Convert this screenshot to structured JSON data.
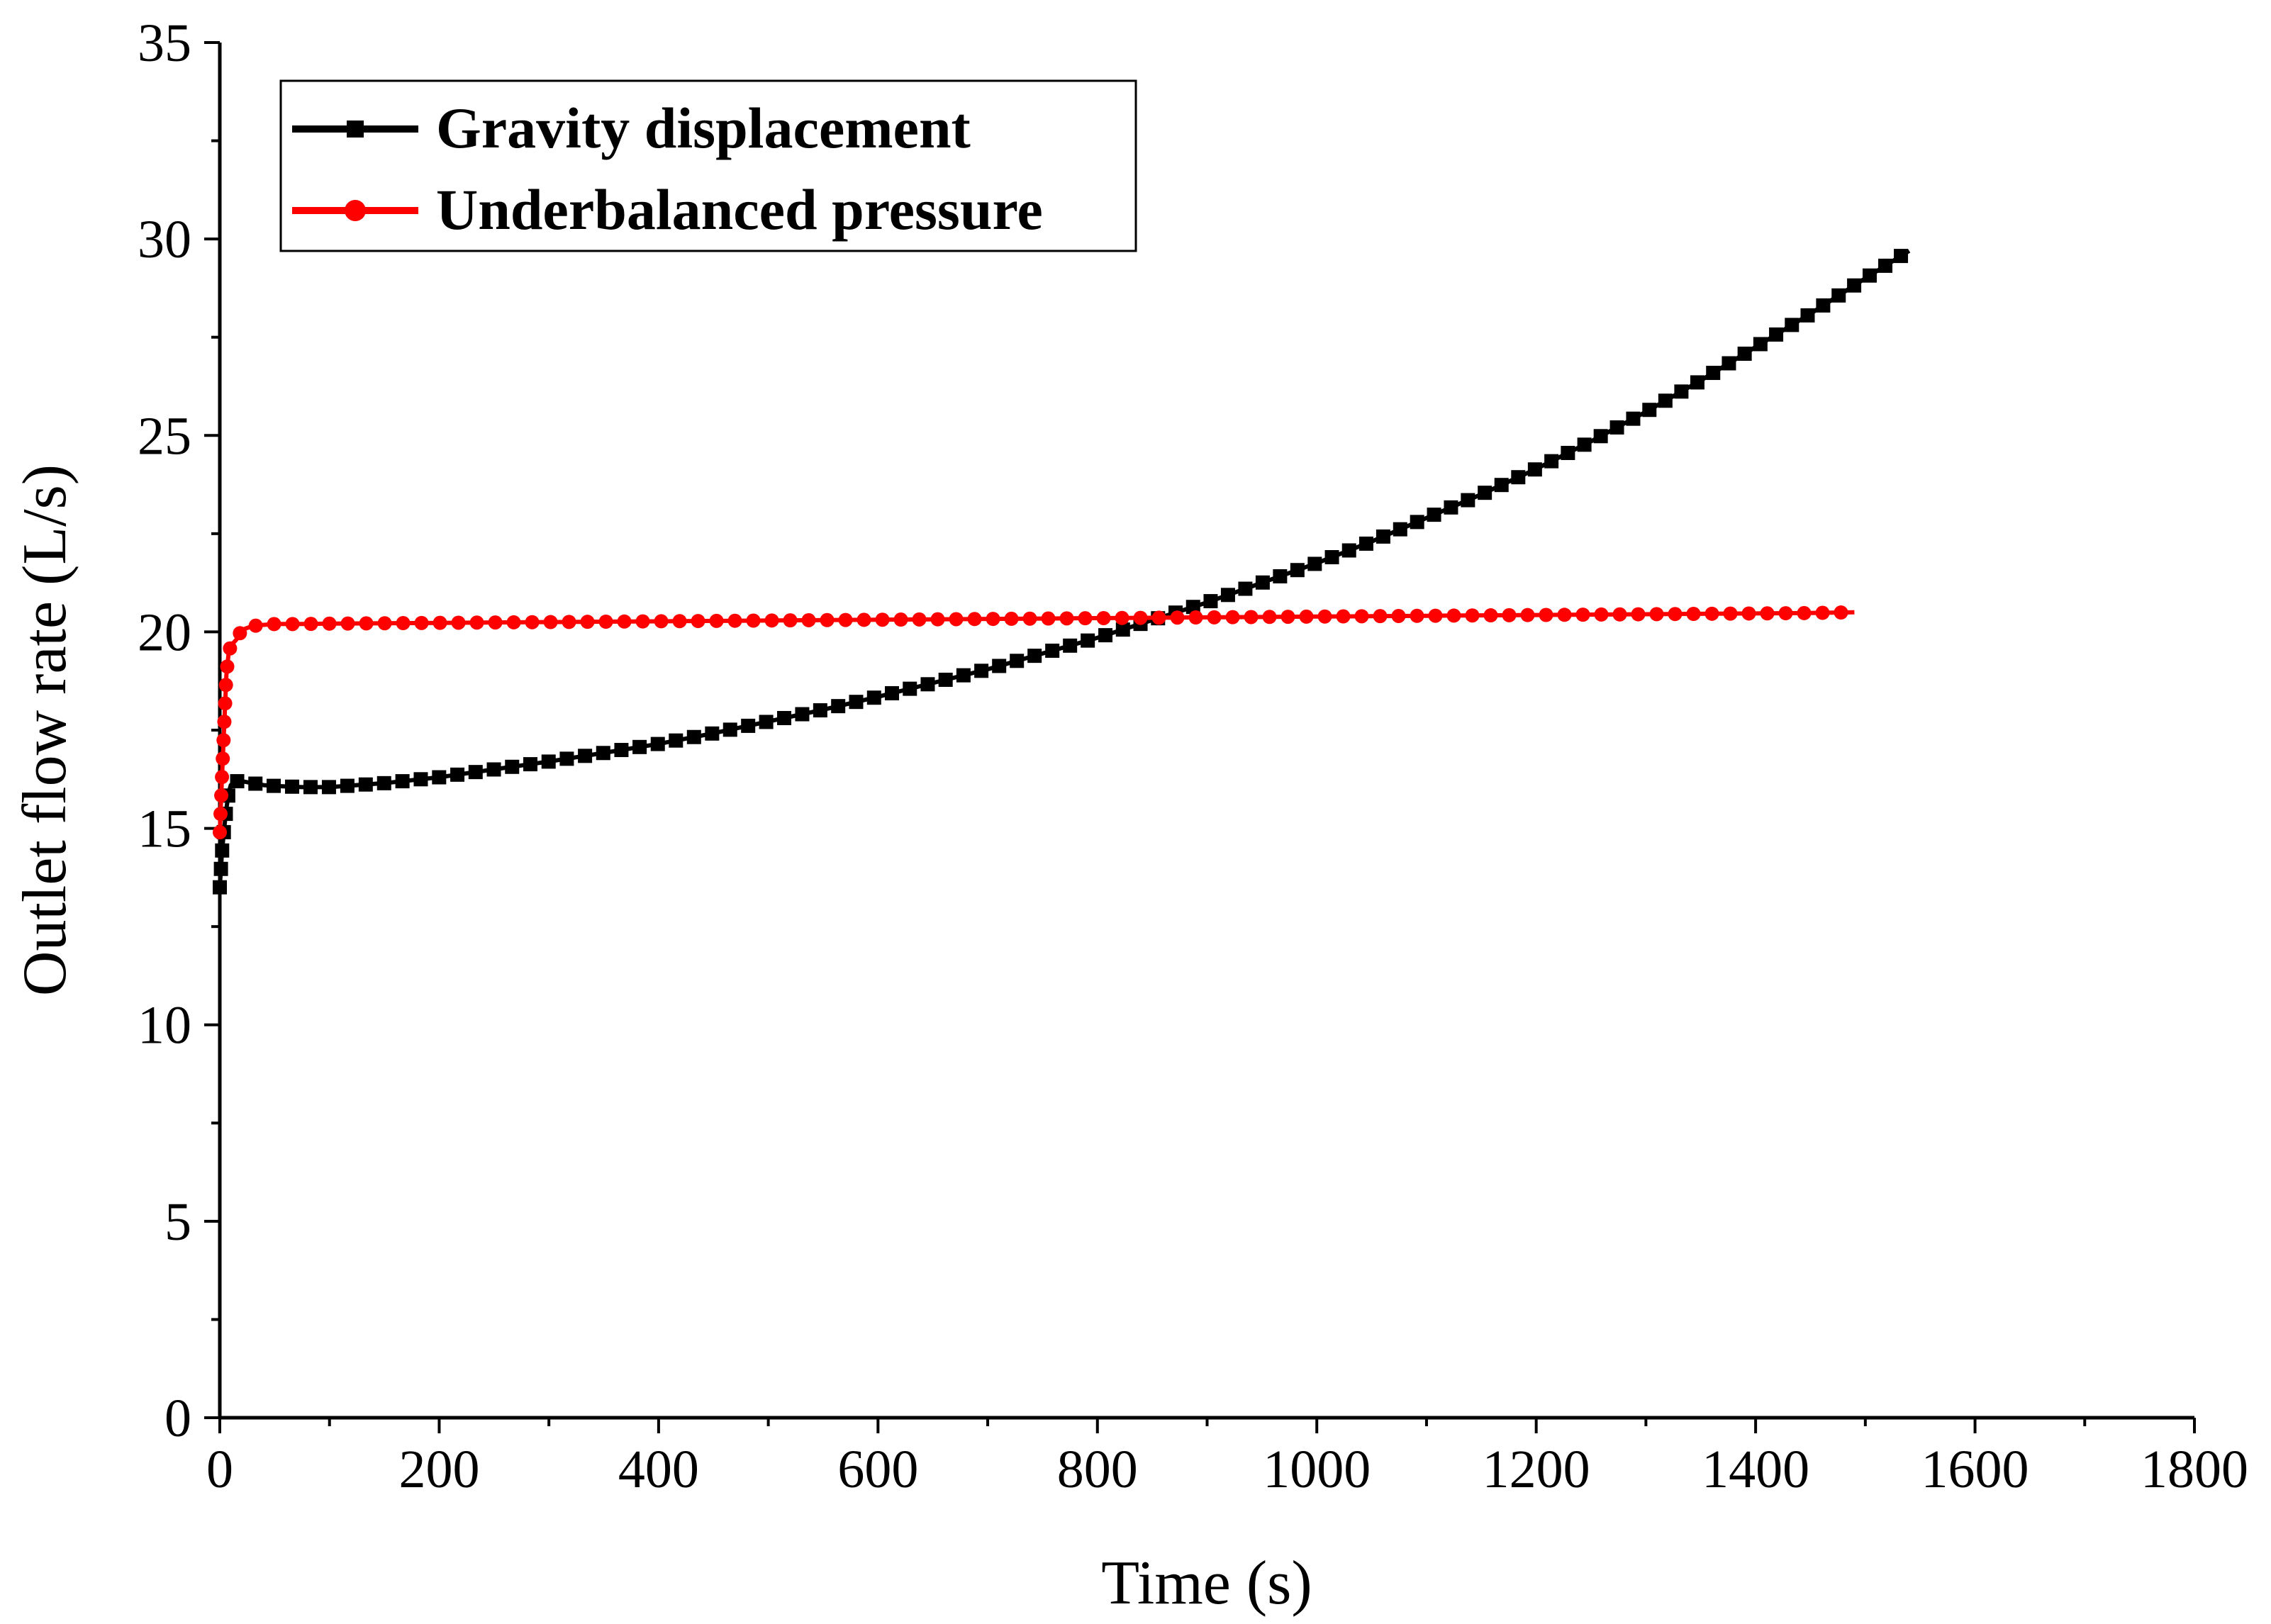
{
  "chart_data": {
    "type": "line",
    "title": "",
    "xlabel": "Time (s)",
    "ylabel": "Outlet flow rate (L/s)",
    "xlim": [
      0,
      1800
    ],
    "ylim": [
      0,
      35
    ],
    "xticks": [
      "0",
      "200",
      "400",
      "600",
      "800",
      "1000",
      "1200",
      "1400",
      "1600",
      "1800"
    ],
    "yticks": [
      "0",
      "5",
      "10",
      "15",
      "20",
      "25",
      "30",
      "35"
    ],
    "grid": false,
    "legend_position": "top-left",
    "series": [
      {
        "name": "Gravity displacement",
        "color": "#000000",
        "marker": "square",
        "x": [
          0,
          2,
          4,
          6,
          8,
          10,
          15,
          20,
          30,
          40,
          50,
          75,
          100,
          150,
          200,
          250,
          300,
          350,
          400,
          450,
          500,
          550,
          600,
          650,
          700,
          750,
          800,
          850,
          900,
          950,
          1000,
          1050,
          1100,
          1150,
          1200,
          1250,
          1300,
          1350,
          1400,
          1450,
          1500,
          1540
        ],
        "y": [
          13.5,
          14.4,
          15.0,
          15.5,
          15.9,
          16.1,
          16.2,
          16.2,
          16.15,
          16.1,
          16.08,
          16.05,
          16.05,
          16.15,
          16.3,
          16.5,
          16.7,
          16.92,
          17.15,
          17.42,
          17.72,
          18.02,
          18.35,
          18.7,
          19.05,
          19.45,
          19.85,
          20.3,
          20.75,
          21.25,
          21.75,
          22.3,
          22.9,
          23.5,
          24.15,
          24.85,
          25.6,
          26.4,
          27.25,
          28.1,
          29.0,
          29.7
        ]
      },
      {
        "name": "Underbalanced pressure",
        "color": "#ff0000",
        "marker": "circle",
        "x": [
          0,
          2,
          4,
          6,
          8,
          10,
          15,
          20,
          30,
          40,
          50,
          75,
          100,
          150,
          200,
          250,
          300,
          350,
          400,
          450,
          500,
          550,
          600,
          650,
          700,
          750,
          800,
          850,
          900,
          950,
          1000,
          1050,
          1100,
          1150,
          1200,
          1250,
          1300,
          1350,
          1400,
          1450,
          1490
        ],
        "y": [
          14.9,
          16.3,
          17.6,
          18.9,
          19.45,
          19.65,
          19.8,
          20.05,
          20.15,
          20.18,
          20.2,
          20.2,
          20.21,
          20.22,
          20.23,
          20.24,
          20.25,
          20.26,
          20.27,
          20.28,
          20.29,
          20.3,
          20.31,
          20.32,
          20.33,
          20.34,
          20.35,
          20.36,
          20.37,
          20.38,
          20.39,
          20.4,
          20.41,
          20.42,
          20.43,
          20.44,
          20.45,
          20.46,
          20.47,
          20.48,
          20.5
        ]
      }
    ]
  }
}
